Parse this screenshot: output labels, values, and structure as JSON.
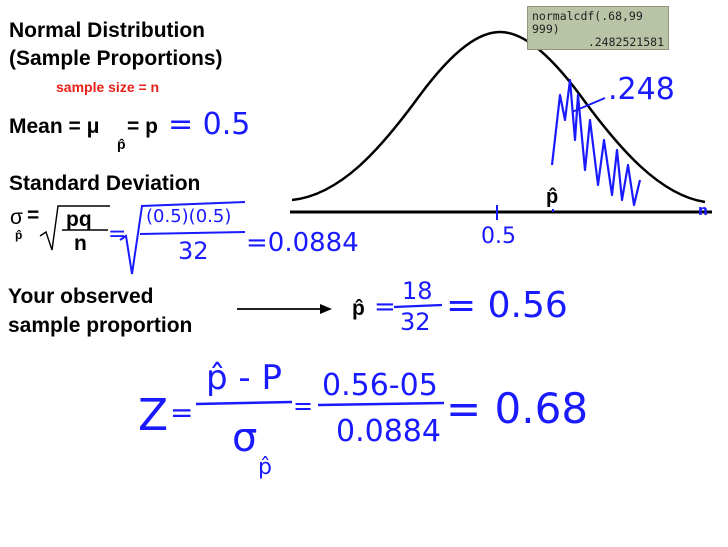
{
  "title": {
    "line1": "Normal Distribution",
    "line2": "(Sample Proportions)",
    "subtitle": "sample size = n"
  },
  "mean": {
    "label": "Mean = μ",
    "eq": "= p",
    "hat": "p̂",
    "value": "= 0.5"
  },
  "std": {
    "label": "Standard Deviation",
    "sigma": "σ",
    "sub": "p̂",
    "eq": "=",
    "num": "pq",
    "den": "n",
    "hw_num": "(0.5)(0.5)",
    "hw_den": "32",
    "hw_result": "=0.0884"
  },
  "graph": {
    "center_label": "0.5",
    "phat_label": "p̂",
    "area_label": ".248",
    "axis_end": "n"
  },
  "calculator": {
    "line1": "normalcdf(.68,99",
    "line2": "999)",
    "result": ".2482521581"
  },
  "observed": {
    "line1": "Your observed",
    "line2": "sample proportion",
    "phat": "p̂",
    "frac_num": "18",
    "frac_den": "32",
    "result": "= 0.56"
  },
  "zscore": {
    "z": "Z",
    "num": "p̂ - P",
    "den": "σ",
    "den_sub": "p̂",
    "num2": "0.56-05",
    "den2": "0.0884",
    "result": "= 0.68"
  },
  "colors": {
    "ink": "#1a1aff",
    "accent": "#e8201a",
    "text": "#000000"
  }
}
